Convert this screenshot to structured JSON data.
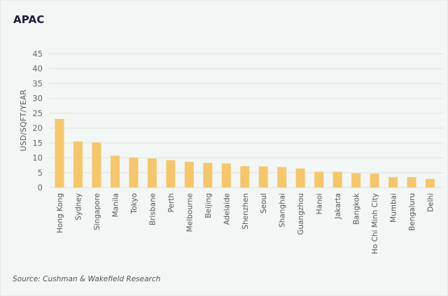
{
  "colors": {
    "bar": "#f5c76a",
    "grid": "#e2e6e5",
    "background": "#f2f6f5",
    "title": "#1b1a3a"
  },
  "chart_data": {
    "type": "bar",
    "title": "APAC",
    "xlabel": "",
    "ylabel": "USD/SQFT/YEAR",
    "ylim": [
      0,
      45
    ],
    "yticks": [
      0,
      5,
      10,
      15,
      20,
      25,
      30,
      35,
      40,
      45
    ],
    "grid": true,
    "categories": [
      "Hong Kong",
      "Sydney",
      "Singapore",
      "Manila",
      "Tokyo",
      "Brisbane",
      "Perth",
      "Melbourne",
      "Beijing",
      "Adelaide",
      "Shenzhen",
      "Seoul",
      "Shanghai",
      "Guangzhou",
      "Hanoi",
      "Jakarta",
      "Bangkok",
      "Ho Chi Minh City",
      "Mumbai",
      "Bengaluru",
      "Delhi"
    ],
    "values": [
      23.1,
      15.5,
      15.2,
      10.7,
      10.1,
      9.8,
      9.2,
      8.7,
      8.3,
      8.1,
      7.2,
      7.1,
      6.9,
      6.4,
      5.3,
      5.3,
      4.8,
      4.7,
      3.5,
      3.5,
      2.9
    ],
    "source": "Source: Cushman & Wakefield Research"
  }
}
